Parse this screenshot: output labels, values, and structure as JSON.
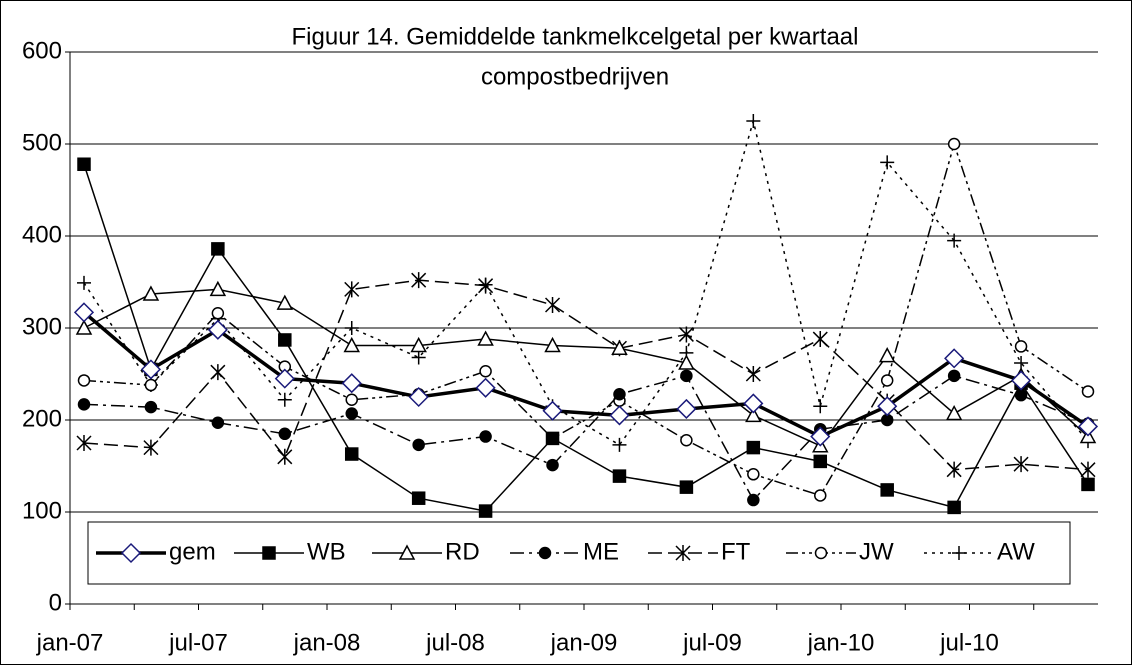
{
  "chart_data": {
    "type": "line",
    "title": "Figuur 14. Gemiddelde tankmelkcelgetal per kwartaal",
    "subtitle": "compostbedrijven",
    "categories": [
      "jan-07",
      null,
      "jul-07",
      null,
      "jan-08",
      null,
      "jul-08",
      null,
      "jan-09",
      null,
      "jul-09",
      null,
      "jan-10",
      null,
      "jul-10",
      null
    ],
    "ylim": [
      0,
      600
    ],
    "yticks": [
      0,
      100,
      200,
      300,
      400,
      500,
      600
    ],
    "grid": true,
    "series": [
      {
        "name": "gem",
        "color": "#000000",
        "marker": "diamond",
        "dash": "bold",
        "values": [
          317,
          255,
          298,
          245,
          240,
          225,
          235,
          210,
          205,
          212,
          218,
          182,
          215,
          267,
          243,
          193
        ]
      },
      {
        "name": "WB",
        "color": "#000000",
        "marker": "square",
        "dash": "solid",
        "values": [
          478,
          255,
          386,
          287,
          163,
          115,
          101,
          180,
          139,
          127,
          170,
          155,
          124,
          105,
          240,
          130
        ]
      },
      {
        "name": "RD",
        "color": "#000000",
        "marker": "triangle",
        "dash": "solid",
        "values": [
          300,
          337,
          342,
          327,
          281,
          281,
          288,
          281,
          278,
          262,
          205,
          172,
          270,
          207,
          248,
          182
        ]
      },
      {
        "name": "ME",
        "color": "#000000",
        "marker": "dot",
        "dash": "dashdot",
        "values": [
          217,
          214,
          197,
          185,
          207,
          173,
          182,
          151,
          228,
          248,
          113,
          190,
          200,
          248,
          227,
          196
        ]
      },
      {
        "name": "FT",
        "color": "#000000",
        "marker": "asterisk",
        "dash": "dash",
        "values": [
          175,
          170,
          252,
          160,
          342,
          352,
          346,
          325,
          278,
          293,
          250,
          288,
          220,
          146,
          152,
          146
        ]
      },
      {
        "name": "JW",
        "color": "#000000",
        "marker": "circle",
        "dash": "dashdotdot",
        "values": [
          243,
          238,
          316,
          258,
          222,
          228,
          253,
          180,
          221,
          178,
          141,
          118,
          243,
          500,
          280,
          231
        ]
      },
      {
        "name": "AW",
        "color": "#000000",
        "marker": "plus",
        "dash": "dot",
        "values": [
          349,
          238,
          310,
          222,
          300,
          268,
          347,
          215,
          173,
          273,
          525,
          215,
          480,
          395,
          262,
          177
        ]
      }
    ]
  }
}
